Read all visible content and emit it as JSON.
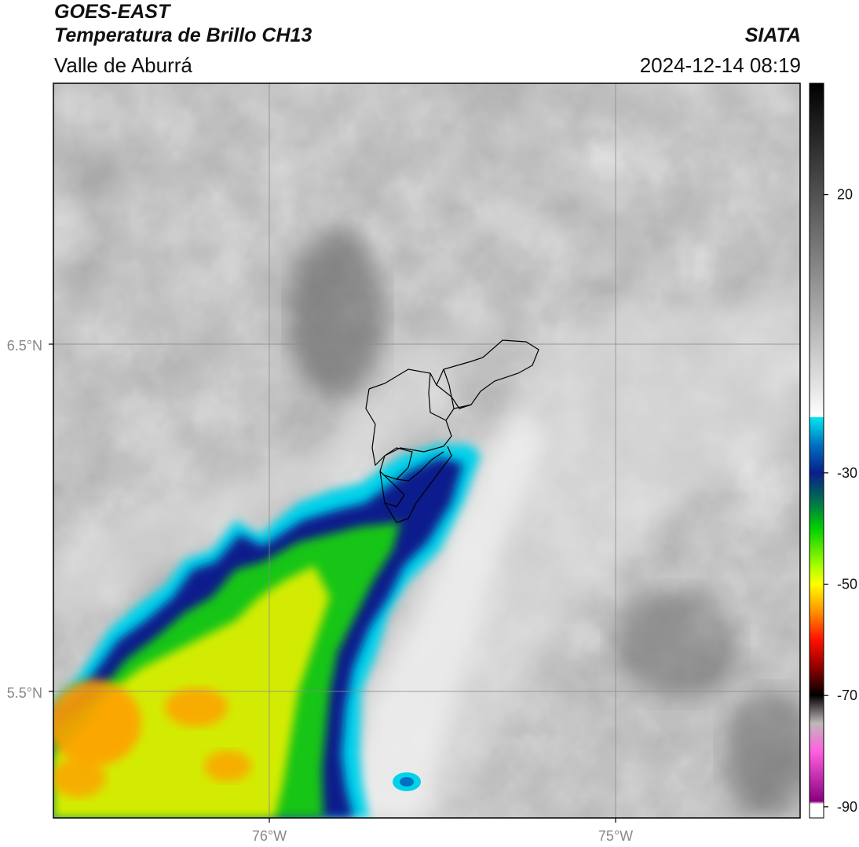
{
  "header": {
    "satellite": "GOES-EAST",
    "product": "Temperatura de Brillo CH13",
    "region": "Valle de Aburrá",
    "organization": "SIATA",
    "datetime": "2024-12-14 08:19"
  },
  "map": {
    "lat_labels": [
      "6.5°N",
      "5.5°N"
    ],
    "lon_labels": [
      "76°W",
      "75°W"
    ],
    "colors": {
      "gridline": "#8a8a8a",
      "border": "#000000",
      "cloud_deep": "#0a1e8c",
      "cloud_cyan": "#00d2ea",
      "cloud_green": "#19c519",
      "cloud_yellow": "#e8f000",
      "cloud_orange": "#ffa000"
    }
  },
  "colorbar": {
    "tick_labels": [
      "20",
      "-30",
      "-50",
      "-70",
      "-90"
    ],
    "tick_values": [
      20,
      -30,
      -50,
      -70,
      -90
    ],
    "stops": [
      {
        "value": 40,
        "color": "#000000"
      },
      {
        "value": 10,
        "color": "#7a7a7a"
      },
      {
        "value": -15,
        "color": "#e6e6e6"
      },
      {
        "value": -19.99,
        "color": "#ffffff"
      },
      {
        "value": -20,
        "color": "#00e8f0"
      },
      {
        "value": -25,
        "color": "#0070c0"
      },
      {
        "value": -30,
        "color": "#0a1e8c"
      },
      {
        "value": -35,
        "color": "#007050"
      },
      {
        "value": -40,
        "color": "#00d000"
      },
      {
        "value": -47,
        "color": "#b0ff00"
      },
      {
        "value": -50,
        "color": "#ffff00"
      },
      {
        "value": -55,
        "color": "#ff9000"
      },
      {
        "value": -60,
        "color": "#ff1000"
      },
      {
        "value": -65,
        "color": "#900000"
      },
      {
        "value": -70,
        "color": "#000000"
      },
      {
        "value": -75,
        "color": "#c0b8b8"
      },
      {
        "value": -80,
        "color": "#ff60e0"
      },
      {
        "value": -89,
        "color": "#8a0080"
      },
      {
        "value": -89.5,
        "color": "#ffffff"
      },
      {
        "value": -92,
        "color": "#ffffff"
      }
    ]
  }
}
